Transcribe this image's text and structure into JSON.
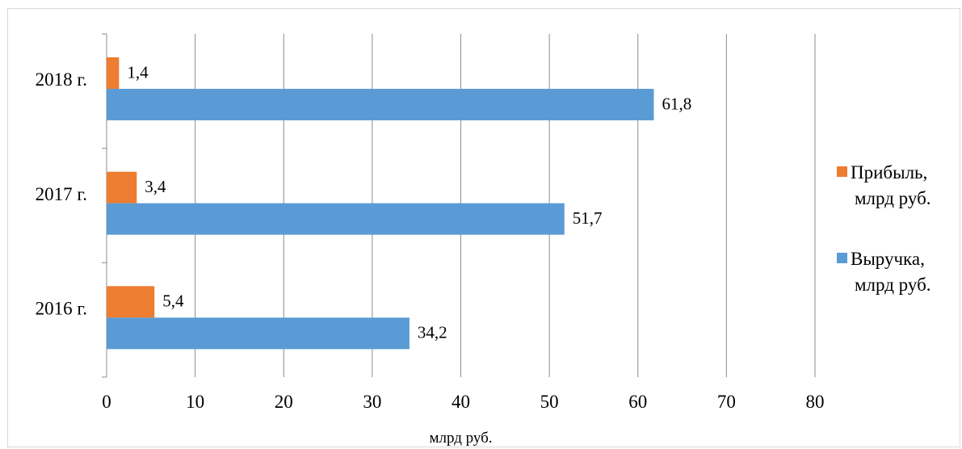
{
  "chart_data": {
    "type": "bar",
    "orientation": "horizontal",
    "categories": [
      "2016 г.",
      "2017 г.",
      "2018 г."
    ],
    "series": [
      {
        "name": "Выручка, млрд руб.",
        "legend_lines": [
          "Выручка,",
          "млрд руб."
        ],
        "values": [
          34.2,
          51.7,
          61.8
        ],
        "labels": [
          "34,2",
          "51,7",
          "61,8"
        ],
        "color": "#5b9bd5"
      },
      {
        "name": "Прибыль, млрд руб.",
        "legend_lines": [
          "Прибыль,",
          "млрд руб."
        ],
        "values": [
          5.4,
          3.4,
          1.4
        ],
        "labels": [
          "5,4",
          "3,4",
          "1,4"
        ],
        "color": "#ed7d31"
      }
    ],
    "xlabel": "млрд руб.",
    "xlim": [
      0,
      80
    ],
    "xticks": [
      "0",
      "10",
      "20",
      "30",
      "40",
      "50",
      "60",
      "70",
      "80"
    ],
    "grid": "vertical",
    "legend_position": "right",
    "legend_order": [
      1,
      0
    ]
  }
}
